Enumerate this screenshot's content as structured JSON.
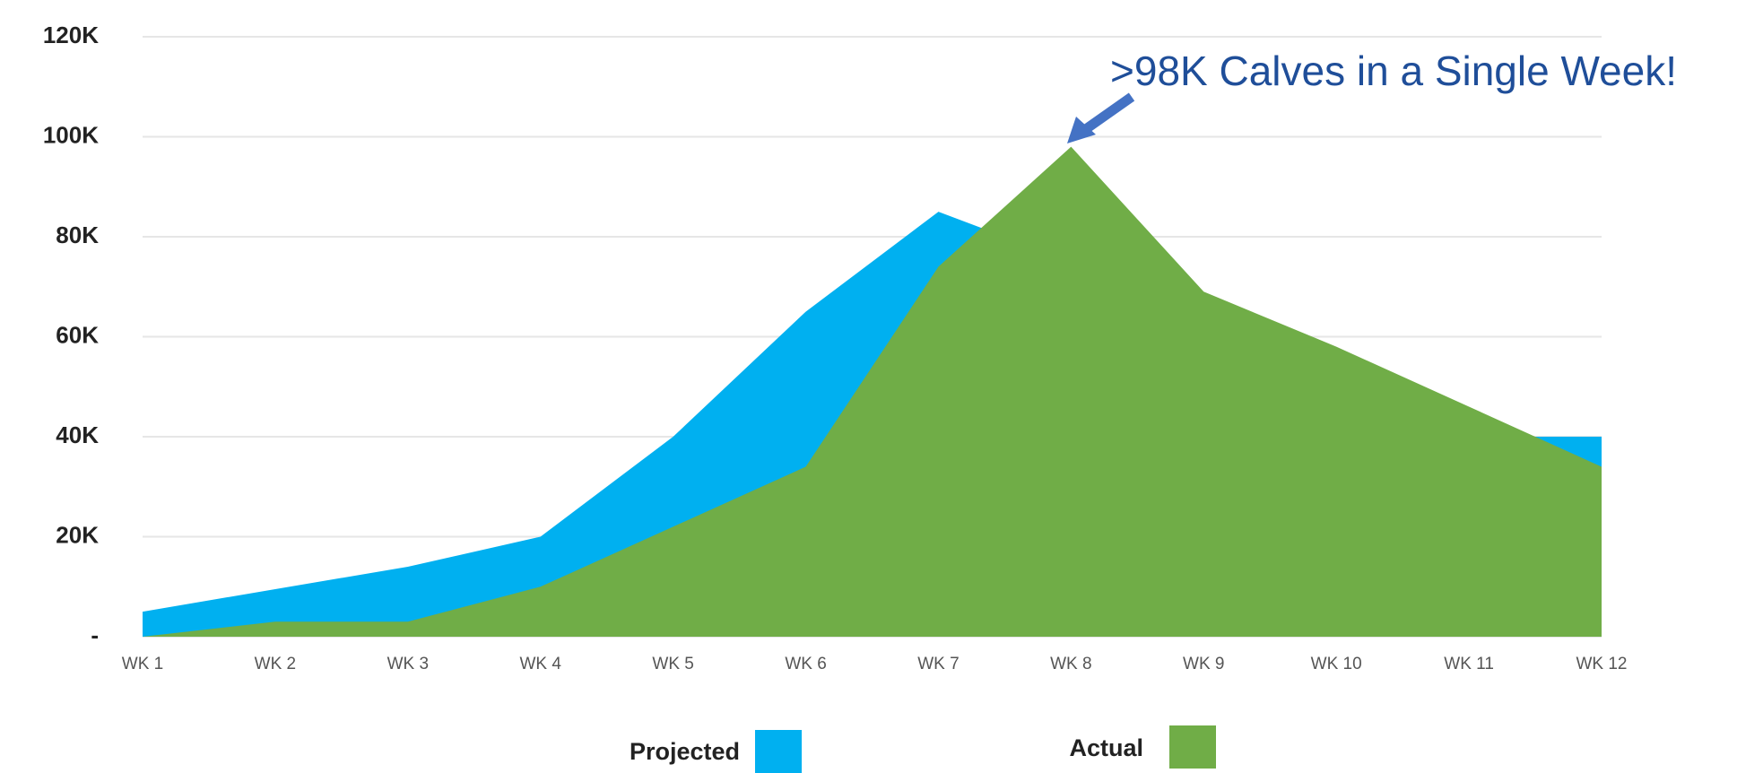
{
  "chart_data": {
    "type": "area",
    "annotation": ">98K Calves in a Single Week!",
    "categories": [
      "WK 1",
      "WK 2",
      "WK 3",
      "WK 4",
      "WK 5",
      "WK 6",
      "WK 7",
      "WK 8",
      "WK 9",
      "WK 10",
      "WK 11",
      "WK 12"
    ],
    "series": [
      {
        "name": "Projected",
        "color": "#00b0f0",
        "values": [
          5000,
          9500,
          14000,
          20000,
          40000,
          65000,
          85000,
          75000,
          60000,
          50000,
          40000,
          40000
        ]
      },
      {
        "name": "Actual",
        "color": "#70ad47",
        "values": [
          0,
          3000,
          3000,
          10000,
          22000,
          34000,
          74000,
          98000,
          69000,
          58000,
          46000,
          34000
        ]
      }
    ],
    "ylim": [
      0,
      120000
    ],
    "yticks": [
      {
        "value": 0,
        "label": "-"
      },
      {
        "value": 20000,
        "label": "20K"
      },
      {
        "value": 40000,
        "label": "40K"
      },
      {
        "value": 60000,
        "label": "60K"
      },
      {
        "value": 80000,
        "label": "80K"
      },
      {
        "value": 100000,
        "label": "100K"
      },
      {
        "value": 120000,
        "label": "120K"
      }
    ],
    "grid": true
  }
}
